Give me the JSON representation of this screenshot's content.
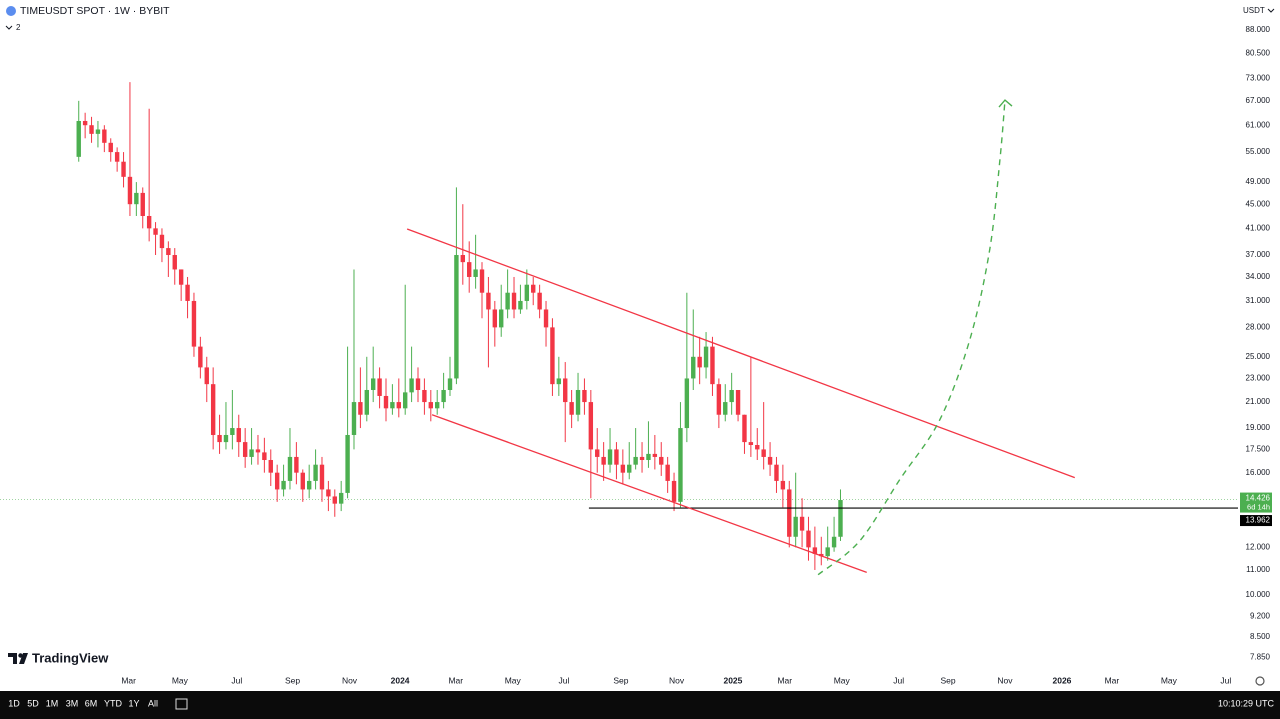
{
  "chart_data": {
    "type": "candlestick",
    "title": "TIMEUSDT SPOT · 1W · BYBIT",
    "indicator_count": 2,
    "currency": "USDT",
    "brand": "TradingView",
    "log_scale": true,
    "up_color": "#4caf50",
    "down_color": "#f23645",
    "x": [
      0,
      1,
      2,
      3,
      4,
      5,
      6,
      7,
      8,
      9,
      10,
      11,
      12,
      13,
      14,
      15,
      16,
      17,
      18,
      19,
      20,
      21,
      22,
      23,
      24,
      25,
      26,
      27,
      28,
      29,
      30,
      31,
      32,
      33,
      34,
      35,
      36,
      37,
      38,
      39,
      40,
      41,
      42,
      43,
      44,
      45,
      46,
      47,
      48,
      49,
      50,
      51,
      52,
      53,
      54,
      55,
      56,
      57,
      58,
      59,
      60,
      61,
      62,
      63,
      64,
      65,
      66,
      67,
      68,
      69,
      70,
      71,
      72,
      73,
      74,
      75,
      76,
      77,
      78,
      79,
      80,
      81,
      82,
      83,
      84,
      85,
      86,
      87,
      88,
      89,
      90,
      91,
      92,
      93,
      94,
      95,
      96,
      97,
      98,
      99,
      100,
      101,
      102,
      103,
      104,
      105,
      106,
      107,
      108,
      109,
      110,
      111,
      112,
      113,
      114,
      115,
      116,
      117,
      118,
      119
    ],
    "open": [
      54,
      62,
      61,
      59,
      60,
      57,
      55,
      53,
      50,
      45,
      47,
      43,
      41,
      40,
      38,
      37,
      35,
      33,
      31,
      26,
      24,
      22.5,
      18.5,
      18,
      18.5,
      19,
      18,
      17,
      17.5,
      17.3,
      16.8,
      16,
      15,
      15.5,
      17,
      16,
      15,
      15.5,
      16.5,
      15,
      14.6,
      14.2,
      14.8,
      18.5,
      21,
      20,
      22,
      23,
      21.5,
      20.5,
      21,
      20.5,
      21.8,
      23,
      22,
      21,
      20.5,
      21,
      22,
      23,
      37,
      36,
      34,
      35,
      32,
      30,
      28,
      30,
      32,
      30,
      31,
      33,
      32,
      30,
      28,
      22.5,
      23,
      21,
      20,
      22,
      21,
      17.5,
      17,
      16.5,
      17.5,
      16.5,
      16,
      16.5,
      17,
      16.8,
      17.2,
      17,
      16.5,
      15.5,
      14.3,
      19,
      23,
      25,
      24,
      26,
      22.5,
      20,
      21,
      22,
      20,
      18,
      17.8,
      17.5,
      17,
      16.5,
      15.5,
      15,
      12.5,
      13.5,
      12.8,
      12,
      11.7,
      11.6,
      12,
      12.5
    ],
    "high": [
      67,
      64,
      63,
      62,
      61,
      58,
      56,
      55,
      72,
      49,
      48,
      65,
      42,
      41,
      39,
      38,
      35,
      34,
      32,
      27,
      25,
      24,
      20,
      21,
      22,
      20,
      19,
      19,
      18.5,
      18.3,
      17.5,
      16.5,
      16.5,
      19,
      18,
      16.2,
      16.5,
      17.5,
      17,
      15.5,
      15,
      15.5,
      26,
      35,
      24,
      25,
      26,
      24,
      23,
      22.5,
      23,
      33,
      26,
      24,
      23,
      22,
      22,
      23.5,
      25,
      48,
      45,
      39,
      40,
      36,
      34,
      31,
      33,
      35,
      34,
      33,
      35,
      34,
      33,
      31,
      29,
      25,
      24.5,
      22,
      23.5,
      23,
      22,
      19,
      18,
      19,
      18,
      17.5,
      18,
      19,
      18,
      19.5,
      18.5,
      18,
      17,
      16,
      21,
      32,
      30,
      27,
      27.5,
      27,
      23,
      22.5,
      23.5,
      22,
      20,
      25,
      19,
      21,
      18,
      17,
      16.5,
      15.5,
      16,
      14.5,
      13.5,
      13,
      12.5,
      13,
      13.5,
      15
    ],
    "low": [
      53,
      58,
      57,
      56,
      55,
      53,
      51,
      48,
      43,
      43,
      41,
      39,
      37,
      36,
      34,
      33,
      31,
      29,
      25,
      23,
      21,
      17.5,
      17.2,
      17.5,
      17.5,
      17,
      16.3,
      16.5,
      16.5,
      16,
      15.2,
      14.3,
      14.6,
      15,
      15.3,
      14.3,
      14.5,
      15,
      14.3,
      13.8,
      13.5,
      13.8,
      14.5,
      17.5,
      19,
      19.5,
      21,
      20.5,
      19.5,
      20,
      19.8,
      20,
      21,
      21,
      20,
      19.5,
      20,
      20.5,
      21.5,
      22.5,
      33,
      32,
      32.5,
      29,
      24,
      26,
      27,
      29,
      29,
      29.5,
      30,
      30.5,
      29,
      26,
      21.5,
      21.5,
      18,
      19,
      19.5,
      20,
      14.5,
      16,
      15.5,
      16,
      15.6,
      15.3,
      15.6,
      16.2,
      16,
      16.3,
      16.2,
      15.8,
      14.8,
      13.8,
      14,
      18,
      22,
      22.5,
      23,
      21.5,
      19,
      19.5,
      20,
      19.5,
      17.2,
      17,
      16.8,
      16.2,
      15.8,
      14.8,
      14,
      12,
      12,
      12,
      11.4,
      11,
      11.2,
      11.4,
      11.8,
      12.3
    ],
    "close": [
      62,
      61,
      59,
      60,
      57,
      55,
      53,
      50,
      45,
      47,
      43,
      41,
      40,
      38,
      37,
      35,
      33,
      31,
      26,
      24,
      22.5,
      18.5,
      18,
      18.5,
      19,
      18,
      17,
      17.5,
      17.3,
      16.8,
      16,
      15,
      15.5,
      17,
      16,
      15,
      15.5,
      16.5,
      15,
      14.6,
      14.2,
      14.8,
      18.5,
      21,
      20,
      22,
      23,
      21.5,
      20.5,
      21,
      20.5,
      21.8,
      23,
      22,
      21,
      20.5,
      21,
      22,
      23,
      37,
      36,
      34,
      35,
      32,
      30,
      28,
      30,
      32,
      30,
      31,
      33,
      32,
      30,
      28,
      22.5,
      23,
      21,
      20,
      22,
      21,
      17.5,
      17,
      16.5,
      17.5,
      16.5,
      16,
      16.5,
      17,
      16.8,
      17.2,
      17,
      16.5,
      15.5,
      14.3,
      19,
      23,
      25,
      24,
      26,
      22.5,
      20,
      21,
      22,
      20,
      18,
      17.8,
      17.5,
      17,
      16.5,
      15.5,
      15,
      12.5,
      13.5,
      12.8,
      12,
      11.7,
      11.6,
      12,
      12.5,
      14.4
    ],
    "last_price": {
      "value": 14.426,
      "countdown": "6d 14h"
    },
    "horizontal_line": {
      "value": 13.962,
      "x_start": 79.7
    },
    "trendlines": [
      {
        "color": "#f23645",
        "x": [
          51.3,
          155.6
        ],
        "y": [
          40.9,
          15.7
        ]
      },
      {
        "color": "#f23645",
        "x": [
          55.2,
          123.1
        ],
        "y": [
          20.0,
          10.9
        ]
      }
    ],
    "projection": {
      "color": "#4caf50",
      "x": [
        115.5,
        122,
        128.3,
        134.5,
        139.2,
        142.3,
        143.9,
        144.7
      ],
      "y": [
        10.8,
        12.3,
        15.6,
        19.6,
        26.7,
        37.7,
        53.3,
        67.2
      ]
    },
    "xlim": [
      -12.3,
      181.1
    ],
    "ylim": [
      7.2,
      98.8
    ],
    "xticks": [
      {
        "value": 7.8,
        "label": "Mar"
      },
      {
        "value": 15.8,
        "label": "May"
      },
      {
        "value": 24.7,
        "label": "Jul"
      },
      {
        "value": 33.4,
        "label": "Sep"
      },
      {
        "value": 42.3,
        "label": "Nov"
      },
      {
        "value": 50.2,
        "label": "2024"
      },
      {
        "value": 58.9,
        "label": "Mar"
      },
      {
        "value": 67.8,
        "label": "May"
      },
      {
        "value": 75.8,
        "label": "Jul"
      },
      {
        "value": 84.7,
        "label": "Sep"
      },
      {
        "value": 93.4,
        "label": "Nov"
      },
      {
        "value": 102.2,
        "label": "2025"
      },
      {
        "value": 110.3,
        "label": "Mar"
      },
      {
        "value": 119.2,
        "label": "May"
      },
      {
        "value": 128.1,
        "label": "Jul"
      },
      {
        "value": 135.8,
        "label": "Sep"
      },
      {
        "value": 144.7,
        "label": "Nov"
      },
      {
        "value": 153.6,
        "label": "2026"
      },
      {
        "value": 161.4,
        "label": "Mar"
      },
      {
        "value": 170.3,
        "label": "May"
      },
      {
        "value": 179.2,
        "label": "Jul"
      }
    ],
    "yticks": [
      {
        "value": 88,
        "label": "88.000"
      },
      {
        "value": 80.5,
        "label": "80.500"
      },
      {
        "value": 73,
        "label": "73.000"
      },
      {
        "value": 67,
        "label": "67.000"
      },
      {
        "value": 61,
        "label": "61.000"
      },
      {
        "value": 55,
        "label": "55.000"
      },
      {
        "value": 49,
        "label": "49.000"
      },
      {
        "value": 45,
        "label": "45.000"
      },
      {
        "value": 41,
        "label": "41.000"
      },
      {
        "value": 37,
        "label": "37.000"
      },
      {
        "value": 34,
        "label": "34.000"
      },
      {
        "value": 31,
        "label": "31.000"
      },
      {
        "value": 28,
        "label": "28.000"
      },
      {
        "value": 25,
        "label": "25.000"
      },
      {
        "value": 23,
        "label": "23.000"
      },
      {
        "value": 21,
        "label": "21.000"
      },
      {
        "value": 19,
        "label": "19.000"
      },
      {
        "value": 17.5,
        "label": "17.500"
      },
      {
        "value": 16,
        "label": "16.000"
      },
      {
        "value": 12,
        "label": "12.000"
      },
      {
        "value": 11,
        "label": "11.000"
      },
      {
        "value": 10,
        "label": "10.000"
      },
      {
        "value": 9.2,
        "label": "9.200"
      },
      {
        "value": 8.5,
        "label": "8.500"
      },
      {
        "value": 7.85,
        "label": "7.850"
      }
    ],
    "toolbar": [
      "1D",
      "5D",
      "1M",
      "3M",
      "6M",
      "YTD",
      "1Y",
      "All"
    ],
    "clock": "10:10:29 UTC"
  }
}
